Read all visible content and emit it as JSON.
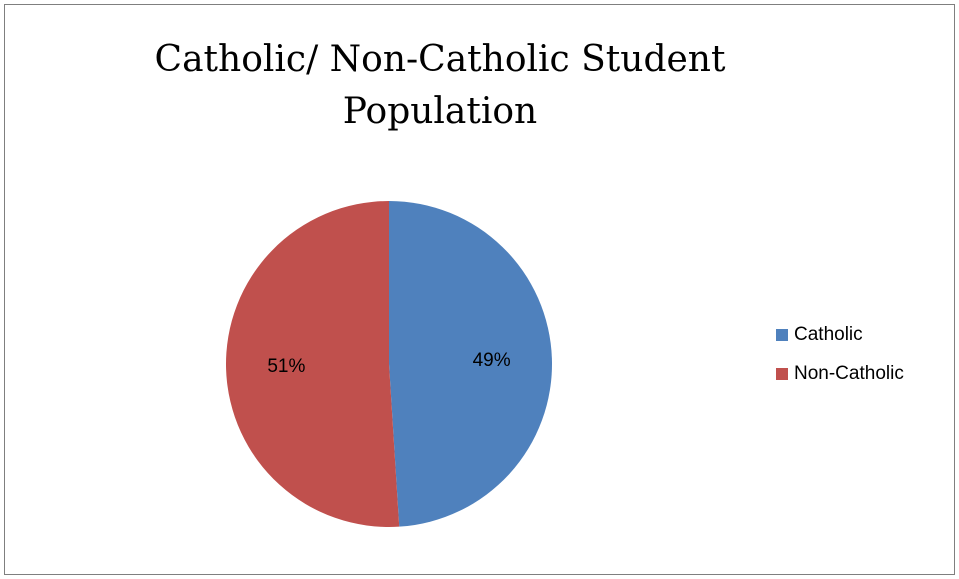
{
  "chart_data": {
    "type": "pie",
    "title": "Catholic/ Non-Catholic Student Population",
    "categories": [
      "Catholic",
      "Non-Catholic"
    ],
    "values": [
      49,
      51
    ],
    "data_labels": [
      "49%",
      "51%"
    ],
    "colors": [
      "#4f81bd",
      "#c0504d"
    ],
    "legend_position": "right",
    "start_angle_deg": 0,
    "direction": "clockwise"
  }
}
